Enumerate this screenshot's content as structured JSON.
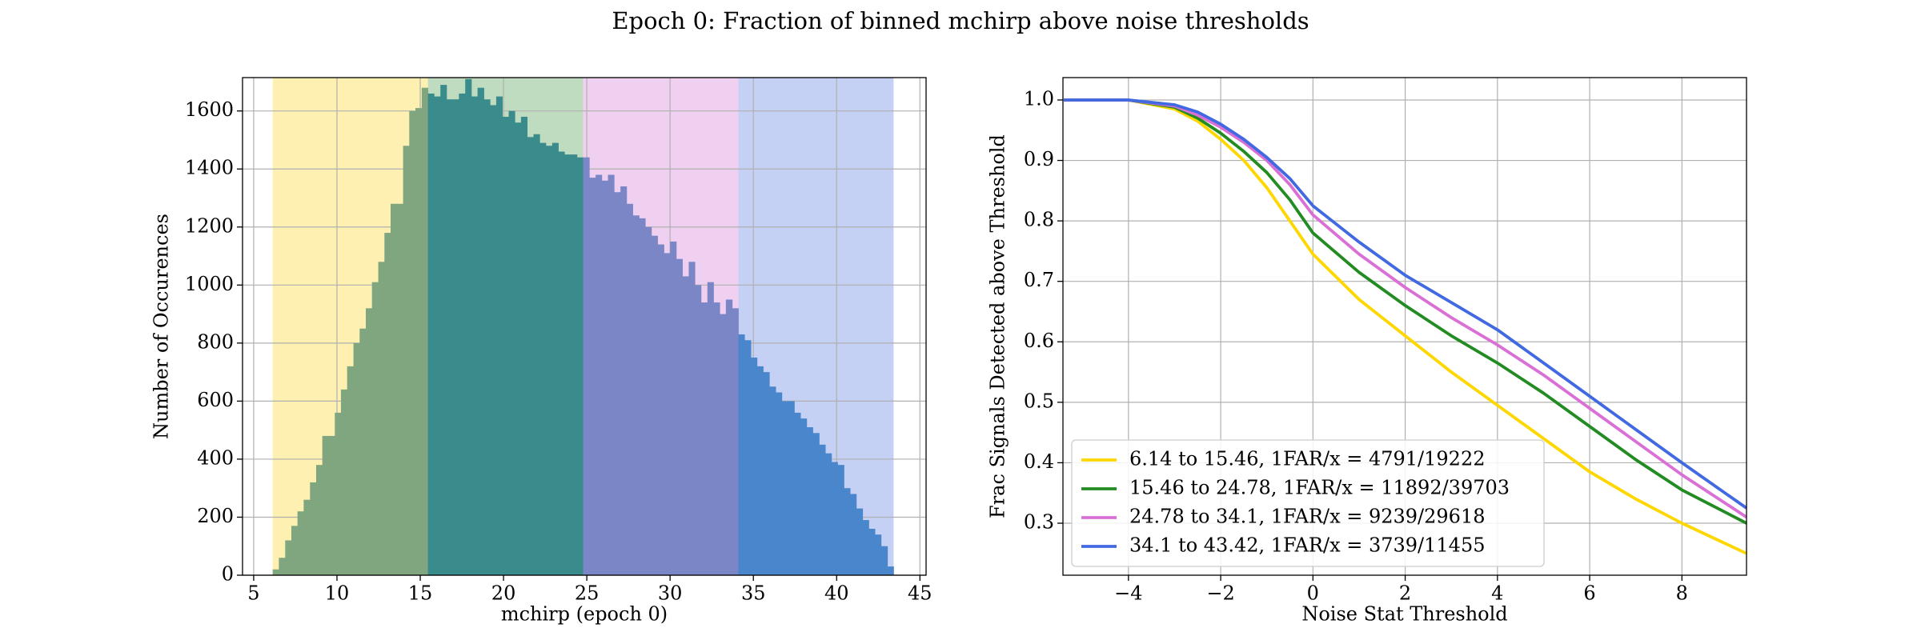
{
  "title": "Epoch 0: Fraction of binned mchirp above noise thresholds",
  "chart_data": [
    {
      "type": "histogram",
      "xlabel": "mchirp (epoch 0)",
      "ylabel": "Number of Occurences",
      "xlim": [
        4.33,
        45.37
      ],
      "ylim": [
        0,
        1715
      ],
      "xticks": [
        5,
        10,
        15,
        20,
        25,
        30,
        35,
        40,
        45
      ],
      "yticks": [
        0,
        200,
        400,
        600,
        800,
        1000,
        1200,
        1400,
        1600
      ],
      "grid": true,
      "series": [
        {
          "color": "#80a680",
          "span_color": "#fdf0b0",
          "bins": [
            6.14,
            6.51,
            6.89,
            7.26,
            7.63,
            8.0,
            8.38,
            8.75,
            9.12,
            9.5,
            9.87,
            10.24,
            10.61,
            10.99,
            11.36,
            11.73,
            12.1,
            12.48,
            12.85,
            13.22,
            13.6,
            13.97,
            14.34,
            14.71,
            15.09,
            15.46
          ],
          "values": [
            20,
            60,
            120,
            170,
            220,
            260,
            320,
            380,
            480,
            480,
            560,
            640,
            720,
            800,
            850,
            920,
            1010,
            1080,
            1180,
            1280,
            1280,
            1480,
            1600,
            1610,
            1680
          ]
        },
        {
          "color": "#3a8c8c",
          "span_color": "#c0dcc0",
          "bins": [
            15.46,
            15.83,
            16.21,
            16.58,
            16.95,
            17.32,
            17.7,
            18.07,
            18.44,
            18.82,
            19.19,
            19.56,
            19.93,
            20.31,
            20.68,
            21.05,
            21.42,
            21.8,
            22.17,
            22.54,
            22.92,
            23.29,
            23.66,
            24.03,
            24.41,
            24.78
          ],
          "values": [
            1660,
            1650,
            1690,
            1640,
            1640,
            1660,
            1710,
            1650,
            1680,
            1640,
            1620,
            1650,
            1580,
            1600,
            1560,
            1580,
            1510,
            1520,
            1490,
            1480,
            1490,
            1460,
            1450,
            1450,
            1440
          ]
        },
        {
          "color": "#7a86c6",
          "span_color": "#f0d0f0",
          "bins": [
            24.78,
            25.15,
            25.53,
            25.9,
            26.27,
            26.64,
            27.02,
            27.39,
            27.76,
            28.14,
            28.51,
            28.88,
            29.25,
            29.63,
            30.0,
            30.37,
            30.74,
            31.12,
            31.49,
            31.86,
            32.24,
            32.61,
            32.98,
            33.35,
            33.73,
            34.1
          ],
          "values": [
            1440,
            1370,
            1380,
            1360,
            1380,
            1320,
            1340,
            1280,
            1240,
            1230,
            1200,
            1170,
            1140,
            1110,
            1150,
            1090,
            1030,
            1080,
            1000,
            940,
            1010,
            940,
            900,
            950,
            920
          ]
        },
        {
          "color": "#4a86cc",
          "span_color": "#c4d0f4",
          "bins": [
            34.1,
            34.47,
            34.85,
            35.22,
            35.59,
            35.96,
            36.34,
            36.71,
            37.08,
            37.46,
            37.83,
            38.2,
            38.57,
            38.95,
            39.32,
            39.69,
            40.06,
            40.44,
            40.81,
            41.18,
            41.56,
            41.93,
            42.3,
            42.67,
            43.05,
            43.42
          ],
          "values": [
            830,
            810,
            750,
            720,
            700,
            650,
            630,
            600,
            600,
            560,
            540,
            510,
            490,
            450,
            420,
            390,
            380,
            300,
            280,
            230,
            190,
            160,
            140,
            100,
            30
          ]
        }
      ]
    },
    {
      "type": "line",
      "xlabel": "Noise Stat Threshold",
      "ylabel": "Frac Signals Detected above Threshold",
      "xlim": [
        -5.42,
        9.4
      ],
      "ylim": [
        0.214,
        1.037
      ],
      "xticks": [
        {
          "value": -4,
          "label": "−4"
        },
        {
          "value": -2,
          "label": "−2"
        },
        0,
        2,
        4,
        6,
        8
      ],
      "yticks": [
        0.3,
        0.4,
        0.5,
        0.6,
        0.7,
        0.8,
        0.9,
        {
          "value": 1,
          "label": "1.0"
        }
      ],
      "grid": true,
      "legend": "lower left",
      "x": [
        -5.4,
        -4,
        -3,
        -2.5,
        -2,
        -1.5,
        -1,
        -0.5,
        0,
        1,
        2,
        3,
        4,
        5,
        6,
        7,
        8,
        9.4
      ],
      "series": [
        {
          "name": "6.14 to 15.46, 1FAR/x = 4791/19222",
          "color": "#ffd700",
          "values": [
            1.0,
            1.0,
            0.985,
            0.965,
            0.935,
            0.9,
            0.855,
            0.8,
            0.745,
            0.67,
            0.61,
            0.55,
            0.495,
            0.44,
            0.385,
            0.34,
            0.3,
            0.25
          ]
        },
        {
          "name": "15.46 to 24.78, 1FAR/x = 11892/39703",
          "color": "#228b22",
          "values": [
            1.0,
            1.0,
            0.988,
            0.97,
            0.945,
            0.915,
            0.88,
            0.835,
            0.78,
            0.715,
            0.66,
            0.61,
            0.565,
            0.515,
            0.46,
            0.405,
            0.355,
            0.3
          ]
        },
        {
          "name": "24.78 to 34.1, 1FAR/x = 9239/29618",
          "color": "#da70d6",
          "values": [
            1.0,
            1.0,
            0.99,
            0.975,
            0.955,
            0.93,
            0.9,
            0.86,
            0.81,
            0.745,
            0.69,
            0.64,
            0.595,
            0.545,
            0.49,
            0.435,
            0.38,
            0.31
          ]
        },
        {
          "name": "34.1 to 43.42, 1FAR/x = 3739/11455",
          "color": "#4169e1",
          "values": [
            1.0,
            1.0,
            0.992,
            0.98,
            0.96,
            0.935,
            0.905,
            0.87,
            0.825,
            0.765,
            0.71,
            0.665,
            0.62,
            0.565,
            0.51,
            0.455,
            0.4,
            0.325
          ]
        }
      ]
    }
  ]
}
